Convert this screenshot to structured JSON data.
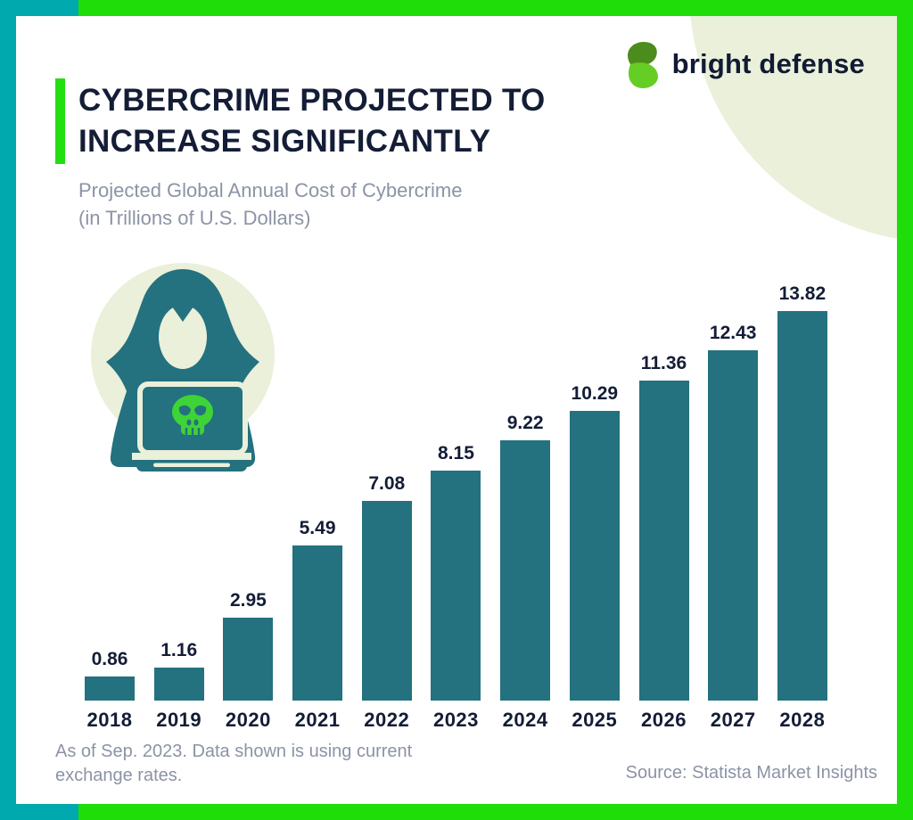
{
  "brand": {
    "name": "bright defense"
  },
  "header": {
    "title_line1": "CYBERCRIME PROJECTED TO",
    "title_line2": "INCREASE SIGNIFICANTLY",
    "subtitle_line1": "Projected Global Annual Cost of Cybercrime",
    "subtitle_line2": "(in Trillions of U.S. Dollars)"
  },
  "chart_data": {
    "type": "bar",
    "title": "Projected Global Annual Cost of Cybercrime (in Trillions of U.S. Dollars)",
    "categories": [
      "2018",
      "2019",
      "2020",
      "2021",
      "2022",
      "2023",
      "2024",
      "2025",
      "2026",
      "2027",
      "2028"
    ],
    "values": [
      0.86,
      1.16,
      2.95,
      5.49,
      7.08,
      8.15,
      9.22,
      10.29,
      11.36,
      12.43,
      13.82
    ],
    "value_labels": [
      "0.86",
      "1.16",
      "2.95",
      "5.49",
      "7.08",
      "8.15",
      "9.22",
      "10.29",
      "11.36",
      "12.43",
      "13.82"
    ],
    "xlabel": "",
    "ylabel": "",
    "ylim": [
      0,
      13.82
    ],
    "grid": false,
    "legend": false,
    "bar_color": "#24717f",
    "label_color": "#141d36"
  },
  "footer": {
    "note_line1": "As of Sep. 2023. Data shown is using current",
    "note_line2": "exchange rates.",
    "source": "Source: Statista Market Insights"
  },
  "icons": {
    "logo": "bright-defense-leaf-b-logo",
    "illustration": "hooded-hacker-at-laptop-with-skull"
  },
  "colors": {
    "border_teal": "#00a9ae",
    "border_green": "#1fdd08",
    "accent_green": "#22df10",
    "navy_text": "#141d36",
    "gray_text": "#8b93a5",
    "bar_teal": "#24717f",
    "cream_circle": "#eaf0da",
    "skull_green": "#3ed336",
    "logo_dark_green": "#4c8c1d",
    "logo_light_green": "#66cd24"
  }
}
